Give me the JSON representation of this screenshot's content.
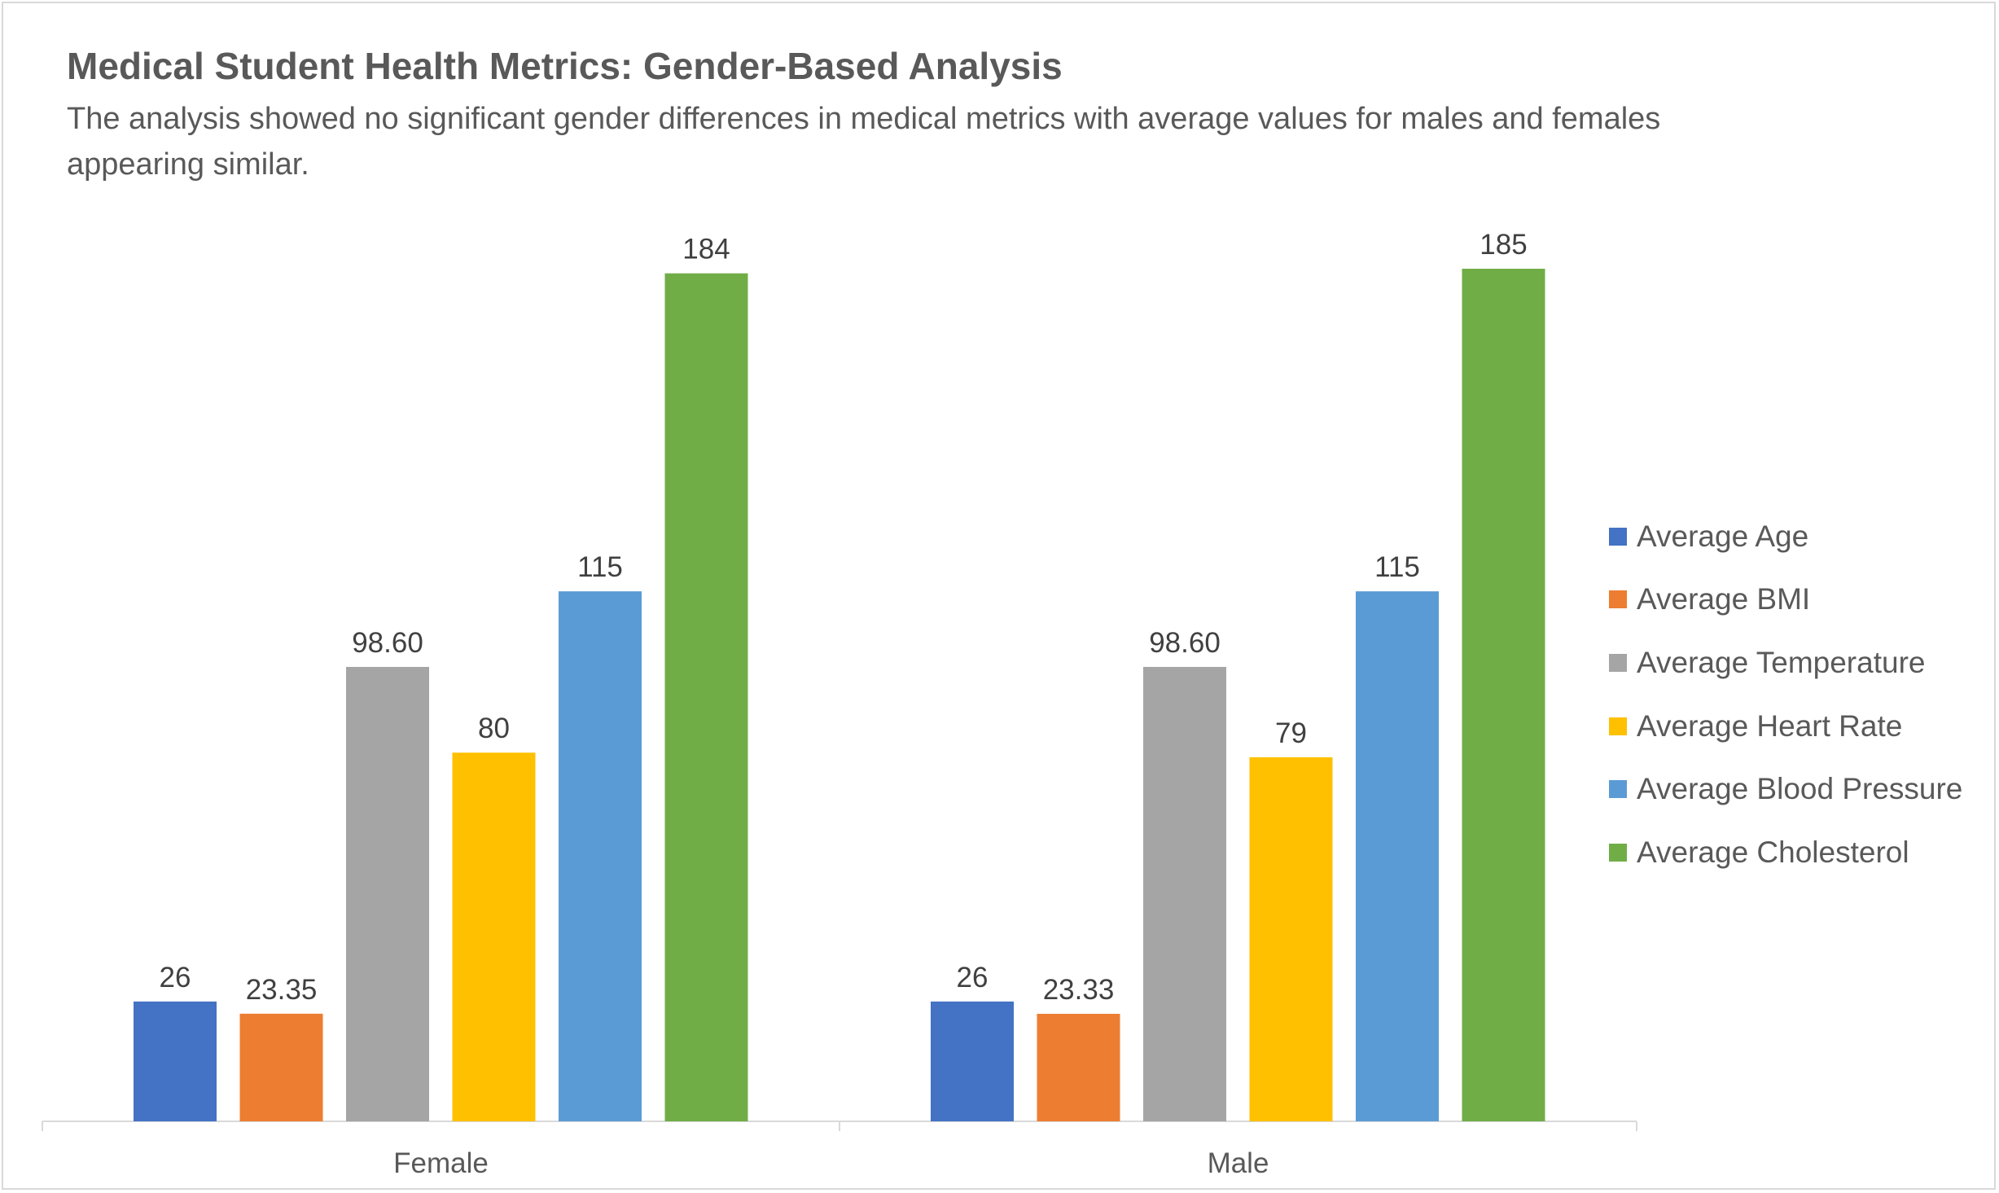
{
  "chart_data": {
    "type": "bar",
    "title": "Medical Student Health Metrics: Gender-Based Analysis",
    "subtitle": "The analysis showed no significant gender differences in medical metrics with average values for males and females appearing similar.",
    "categories": [
      "Female",
      "Male"
    ],
    "series": [
      {
        "name": "Average Age",
        "color": "#4472c4",
        "values": [
          26,
          26
        ],
        "labels": [
          "26",
          "26"
        ]
      },
      {
        "name": "Average BMI",
        "color": "#ed7d31",
        "values": [
          23.35,
          23.33
        ],
        "labels": [
          "23.35",
          "23.33"
        ]
      },
      {
        "name": "Average Temperature",
        "color": "#a5a5a5",
        "values": [
          98.6,
          98.6
        ],
        "labels": [
          "98.60",
          "98.60"
        ]
      },
      {
        "name": "Average Heart Rate",
        "color": "#ffc000",
        "values": [
          80,
          79
        ],
        "labels": [
          "80",
          "79"
        ]
      },
      {
        "name": "Average Blood Pressure",
        "color": "#5b9bd5",
        "values": [
          115,
          115
        ],
        "labels": [
          "115",
          "115"
        ]
      },
      {
        "name": "Average Cholesterol",
        "color": "#70ad47",
        "values": [
          184,
          185
        ],
        "labels": [
          "184",
          "185"
        ]
      }
    ],
    "xlabel": "",
    "ylabel": "",
    "ylim": [
      0,
      200
    ],
    "grid": false,
    "legend": "right"
  }
}
